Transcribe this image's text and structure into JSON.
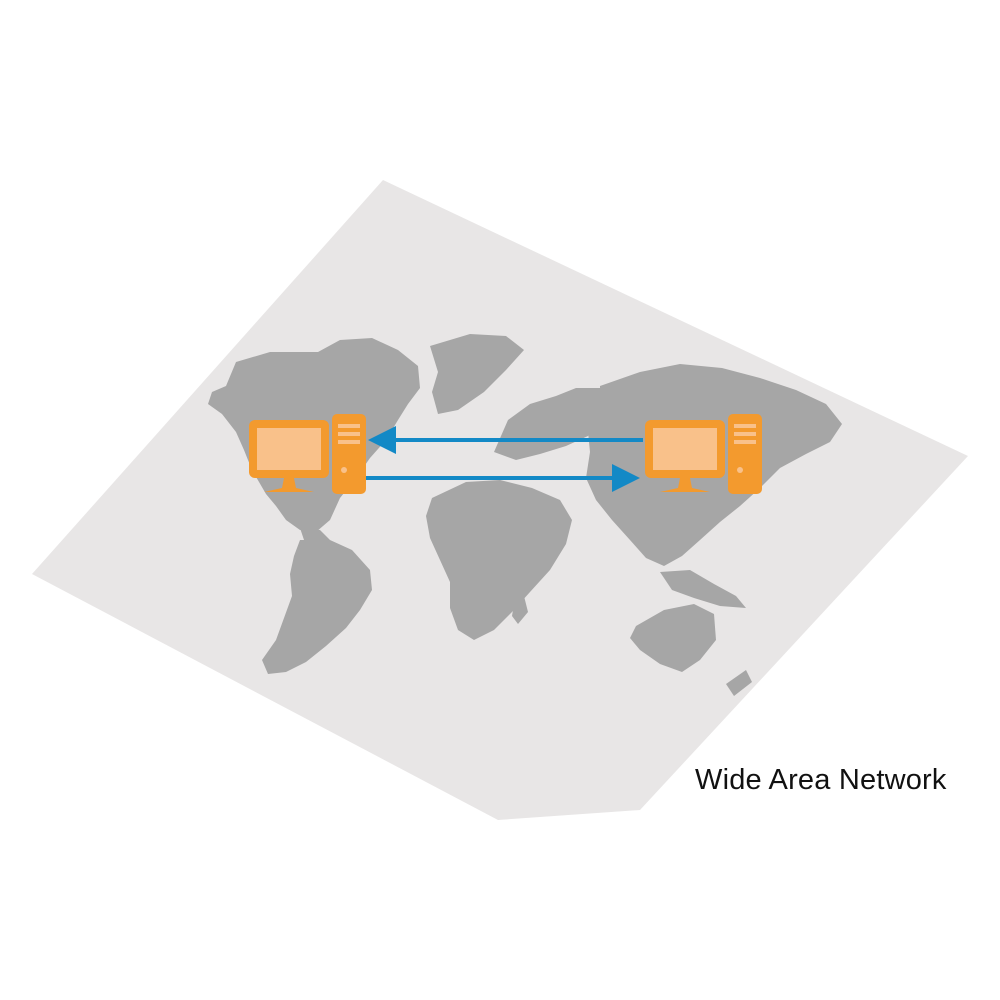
{
  "caption": "Wide Area Network",
  "colors": {
    "map_background": "#e8e6e6",
    "land": "#a6a6a6",
    "computer": "#f39a2e",
    "screen": "#f9c18a",
    "arrow": "#1389c6"
  },
  "icons": {
    "left_computer": "desktop-computer-icon",
    "right_computer": "desktop-computer-icon"
  },
  "arrows": [
    {
      "direction": "right-to-left",
      "from": "right_computer",
      "to": "left_computer"
    },
    {
      "direction": "left-to-right",
      "from": "left_computer",
      "to": "right_computer"
    }
  ]
}
